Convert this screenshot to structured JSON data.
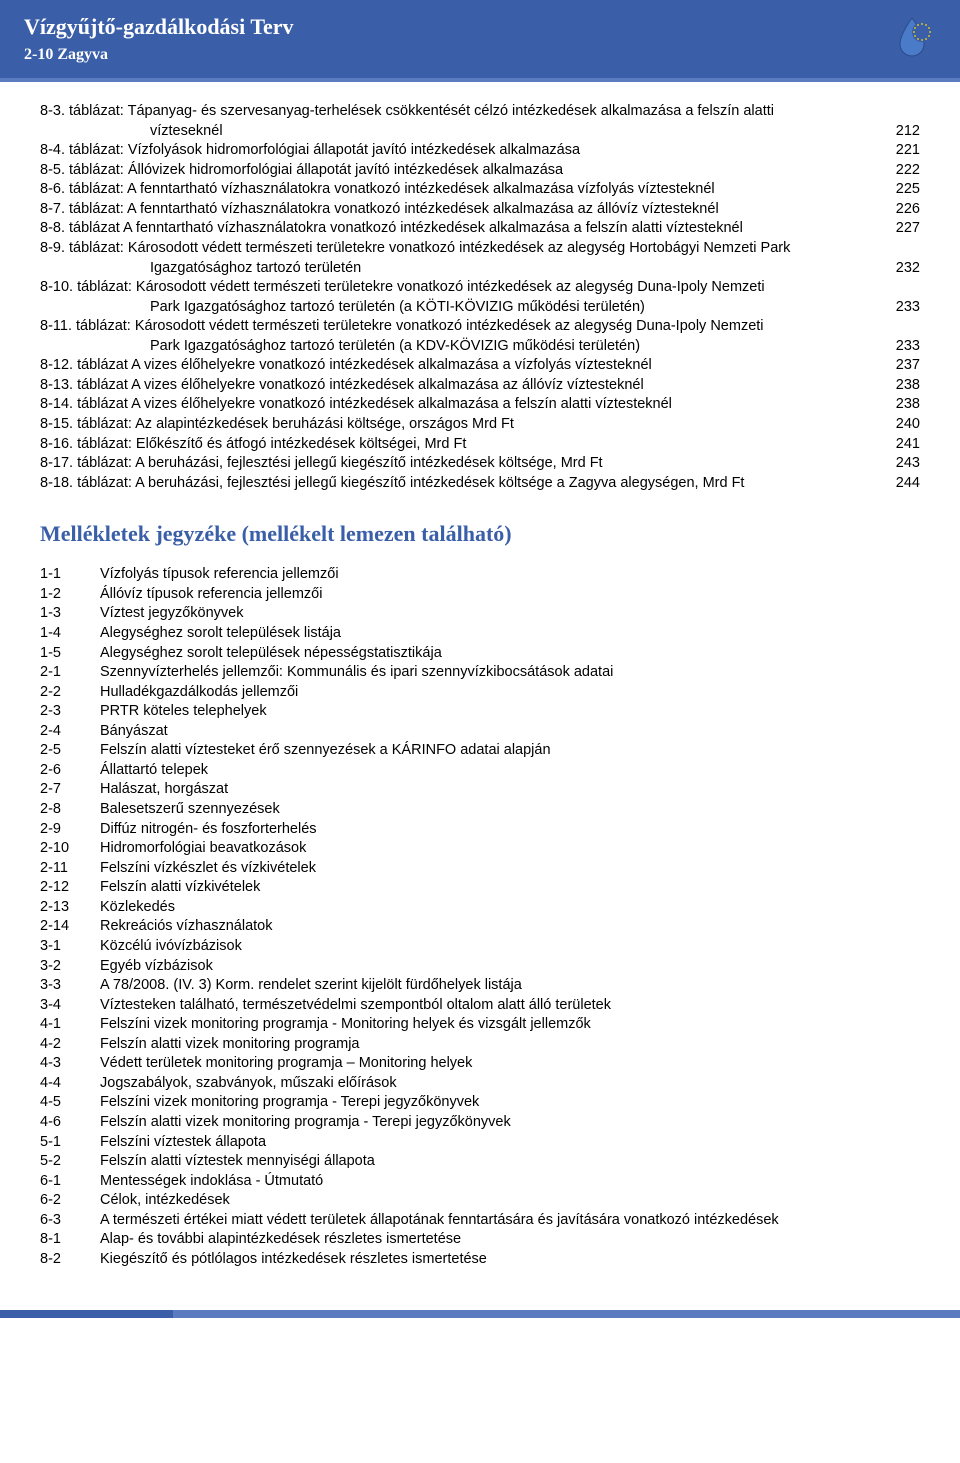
{
  "header": {
    "title": "Vízgyűjtő-gazdálkodási Terv",
    "subtitle": "2-10 Zagyva"
  },
  "toc": [
    {
      "prefix": "8-3. táblázat:",
      "text": " Tápanyag- és szervesanyag-terhelések csökkentését célzó intézkedések alkalmazása a felszín alatti",
      "page": ""
    },
    {
      "prefix": "",
      "text": "vízteseknél",
      "page": "212",
      "indent": true
    },
    {
      "prefix": "8-4. táblázat:",
      "text": " Vízfolyások hidromorfológiai állapotát javító intézkedések alkalmazása",
      "page": "221"
    },
    {
      "prefix": "8-5. táblázat:",
      "text": " Állóvizek hidromorfológiai állapotát javító intézkedések alkalmazása",
      "page": "222"
    },
    {
      "prefix": "8-6. táblázat:",
      "text": " A fenntartható vízhasználatokra vonatkozó intézkedések alkalmazása vízfolyás víztesteknél",
      "page": "225"
    },
    {
      "prefix": "8-7. táblázat:",
      "text": " A fenntartható vízhasználatokra vonatkozó intézkedések alkalmazása az állóvíz víztesteknél",
      "page": "226"
    },
    {
      "prefix": "8-8. táblázat",
      "text": "  A fenntartható vízhasználatokra vonatkozó intézkedések alkalmazása a felszín alatti víztesteknél",
      "page": "227"
    },
    {
      "prefix": "8-9. táblázat:",
      "text": " Károsodott védett természeti területekre vonatkozó intézkedések az alegység Hortobágyi Nemzeti Park",
      "page": ""
    },
    {
      "prefix": "",
      "text": "Igazgatósághoz tartozó területén",
      "page": "232",
      "indent": true
    },
    {
      "prefix": "8-10. táblázat:",
      "text": "      Károsodott védett természeti területekre vonatkozó intézkedések az alegység Duna-Ipoly Nemzeti",
      "page": ""
    },
    {
      "prefix": "",
      "text": "Park Igazgatósághoz tartozó területén (a KÖTI-KÖVIZIG működési területén)",
      "page": "233",
      "indent": true
    },
    {
      "prefix": "8-11. táblázat:",
      "text": "      Károsodott védett természeti területekre vonatkozó intézkedések az alegység Duna-Ipoly Nemzeti",
      "page": ""
    },
    {
      "prefix": "",
      "text": "Park Igazgatósághoz tartozó területén (a KDV-KÖVIZIG működési területén)",
      "page": "233",
      "indent": true
    },
    {
      "prefix": "8-12. táblázat",
      "text": " A vizes élőhelyekre vonatkozó intézkedések alkalmazása a vízfolyás víztesteknél",
      "page": "237"
    },
    {
      "prefix": "8-13. táblázat",
      "text": " A vizes élőhelyekre vonatkozó intézkedések alkalmazása az állóvíz víztesteknél",
      "page": "238"
    },
    {
      "prefix": "8-14. táblázat",
      "text": " A vizes élőhelyekre vonatkozó intézkedések alkalmazása a felszín alatti víztesteknél",
      "page": "238"
    },
    {
      "prefix": "8-15. táblázat:",
      "text": "      Az alapintézkedések beruházási költsége, országos Mrd Ft",
      "page": "240"
    },
    {
      "prefix": "8-16. táblázat:",
      "text": "      Előkészítő és átfogó intézkedések költségei, Mrd Ft",
      "page": "241"
    },
    {
      "prefix": "8-17. táblázat:",
      "text": "      A beruházási, fejlesztési jellegű kiegészítő intézkedések költsége, Mrd Ft",
      "page": "243"
    },
    {
      "prefix": "8-18. táblázat:",
      "text": "      A beruházási, fejlesztési jellegű kiegészítő intézkedések költsége a Zagyva alegységen, Mrd Ft",
      "page": "244"
    }
  ],
  "section_title": "Mellékletek jegyzéke (mellékelt lemezen található)",
  "appendix": [
    {
      "num": "1-1",
      "text": "Vízfolyás típusok referencia jellemzői"
    },
    {
      "num": "1-2",
      "text": "Állóvíz típusok referencia jellemzői"
    },
    {
      "num": "1-3",
      "text": "Víztest jegyzőkönyvek"
    },
    {
      "num": "1-4",
      "text": "Alegységhez sorolt települések listája"
    },
    {
      "num": "1-5",
      "text": "Alegységhez sorolt települések népességstatisztikája"
    },
    {
      "num": "2-1",
      "text": "Szennyvízterhelés jellemzői: Kommunális és ipari szennyvízkibocsátások adatai"
    },
    {
      "num": "2-2",
      "text": "Hulladékgazdálkodás jellemzői"
    },
    {
      "num": "2-3",
      "text": "PRTR köteles telephelyek"
    },
    {
      "num": "2-4",
      "text": "Bányászat"
    },
    {
      "num": "2-5",
      "text": "Felszín alatti víztesteket érő szennyezések a KÁRINFO adatai alapján"
    },
    {
      "num": "2-6",
      "text": "Állattartó telepek"
    },
    {
      "num": "2-7",
      "text": "Halászat, horgászat"
    },
    {
      "num": "2-8",
      "text": "Balesetszerű szennyezések"
    },
    {
      "num": "2-9",
      "text": "Diffúz nitrogén- és foszforterhelés"
    },
    {
      "num": "2-10",
      "text": "Hidromorfológiai beavatkozások"
    },
    {
      "num": "2-11",
      "text": "Felszíni vízkészlet és vízkivételek"
    },
    {
      "num": "2-12",
      "text": "Felszín alatti vízkivételek"
    },
    {
      "num": "2-13",
      "text": "Közlekedés"
    },
    {
      "num": "2-14",
      "text": "Rekreációs vízhasználatok"
    },
    {
      "num": "3-1",
      "text": "Közcélú ivóvízbázisok"
    },
    {
      "num": "3-2",
      "text": "Egyéb vízbázisok"
    },
    {
      "num": "3-3",
      "text": "A 78/2008. (IV. 3) Korm. rendelet szerint kijelölt fürdőhelyek listája"
    },
    {
      "num": "3-4",
      "text": "Víztesteken található, természetvédelmi szempontból oltalom alatt álló területek"
    },
    {
      "num": "4-1",
      "text": "Felszíni vizek monitoring programja - Monitoring helyek és vizsgált jellemzők"
    },
    {
      "num": "4-2",
      "text": "Felszín alatti vizek monitoring programja"
    },
    {
      "num": "4-3",
      "text": "Védett területek monitoring programja – Monitoring helyek"
    },
    {
      "num": "4-4",
      "text": "Jogszabályok, szabványok, műszaki előírások"
    },
    {
      "num": "4-5",
      "text": "Felszíni vizek monitoring programja - Terepi jegyzőkönyvek"
    },
    {
      "num": "4-6",
      "text": "Felszín alatti vizek monitoring programja - Terepi jegyzőkönyvek"
    },
    {
      "num": "5-1",
      "text": "Felszíni víztestek állapota"
    },
    {
      "num": "5-2",
      "text": "Felszín alatti víztestek mennyiségi állapota"
    },
    {
      "num": "6-1",
      "text": "Mentességek indoklása - Útmutató"
    },
    {
      "num": "6-2",
      "text": "Célok, intézkedések"
    },
    {
      "num": "6-3",
      "text": "A természeti értékei miatt védett területek állapotának fenntartására és javítására vonatkozó intézkedések"
    },
    {
      "num": "8-1",
      "text": "Alap- és további alapintézkedések részletes ismertetése"
    },
    {
      "num": "8-2",
      "text": "Kiegészítő és pótlólagos intézkedések részletes ismertetése"
    }
  ]
}
